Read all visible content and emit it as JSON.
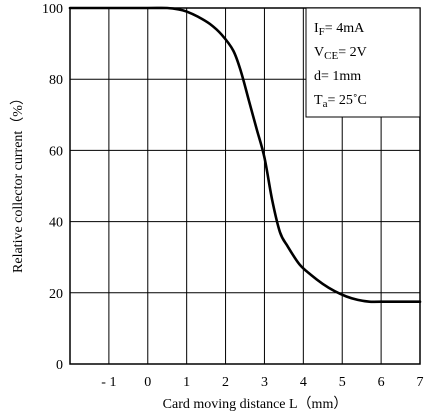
{
  "chart_data": {
    "type": "line",
    "title": "",
    "xlabel": "Card moving distance L（mm）",
    "ylabel": "Relative collector current（%）",
    "xlim": [
      -2,
      7
    ],
    "ylim": [
      0,
      100
    ],
    "x_gridlines": [
      -2,
      -1,
      0,
      1,
      2,
      3,
      4,
      5,
      6,
      7
    ],
    "y_gridlines": [
      0,
      20,
      40,
      60,
      80,
      100
    ],
    "grid": true,
    "x_ticks": [
      {
        "value": -1,
        "label": "- 1"
      },
      {
        "value": 0,
        "label": "0"
      },
      {
        "value": 1,
        "label": "1"
      },
      {
        "value": 2,
        "label": "2"
      },
      {
        "value": 3,
        "label": "3"
      },
      {
        "value": 4,
        "label": "4"
      },
      {
        "value": 5,
        "label": "5"
      },
      {
        "value": 6,
        "label": "6"
      },
      {
        "value": 7,
        "label": "7"
      }
    ],
    "y_ticks": [
      {
        "value": 0,
        "label": "0"
      },
      {
        "value": 20,
        "label": "20"
      },
      {
        "value": 40,
        "label": "40"
      },
      {
        "value": 60,
        "label": "60"
      },
      {
        "value": 80,
        "label": "80"
      },
      {
        "value": 100,
        "label": "100"
      }
    ],
    "series": [
      {
        "x": [
          -2,
          -1,
          0,
          0.5,
          0.8,
          1.0,
          1.3,
          1.6,
          1.9,
          2.2,
          2.4,
          2.6,
          2.8,
          3.0,
          3.2,
          3.4,
          3.6,
          3.9,
          4.2,
          4.5,
          4.8,
          5.1,
          5.4,
          5.7,
          6.0,
          7.0
        ],
        "y": [
          100,
          100,
          100,
          100,
          99.6,
          99,
          97.5,
          95.5,
          92.5,
          88,
          82,
          74,
          66,
          58,
          46,
          37,
          33,
          28,
          25,
          22.5,
          20.5,
          19,
          18,
          17.5,
          17.5,
          17.5
        ]
      }
    ],
    "conditions": [
      {
        "main": "I",
        "sub": "F",
        "rest": "= 4mA"
      },
      {
        "main": "V",
        "sub": "CE",
        "rest": "= 2V"
      },
      {
        "main": "d= 1mm",
        "sub": "",
        "rest": ""
      },
      {
        "main": "T",
        "sub": "a",
        "rest": "= 25˚C"
      }
    ],
    "colors": {
      "line": "#000000",
      "grid": "#000000",
      "background": "#ffffff"
    }
  }
}
